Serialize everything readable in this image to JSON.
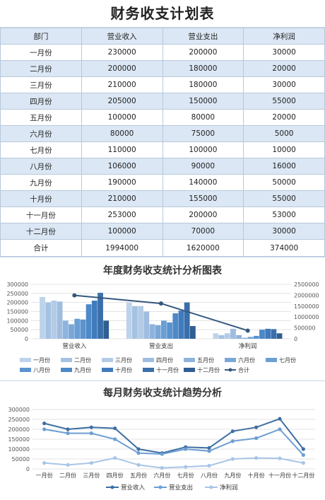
{
  "table": {
    "title": "财务收支计划表",
    "headers": [
      "部门",
      "营业收入",
      "营业支出",
      "净利润"
    ],
    "rows": [
      [
        "一月份",
        "230000",
        "200000",
        "30000"
      ],
      [
        "二月份",
        "200000",
        "180000",
        "20000"
      ],
      [
        "三月份",
        "210000",
        "180000",
        "30000"
      ],
      [
        "四月份",
        "205000",
        "150000",
        "55000"
      ],
      [
        "五月份",
        "100000",
        "80000",
        "20000"
      ],
      [
        "六月份",
        "80000",
        "75000",
        "5000"
      ],
      [
        "七月份",
        "110000",
        "100000",
        "10000"
      ],
      [
        "八月份",
        "106000",
        "90000",
        "16000"
      ],
      [
        "九月份",
        "190000",
        "140000",
        "50000"
      ],
      [
        "十月份",
        "210000",
        "155000",
        "55000"
      ],
      [
        "十一月份",
        "253000",
        "200000",
        "53000"
      ],
      [
        "十二月份",
        "100000",
        "70000",
        "30000"
      ]
    ],
    "total": [
      "合计",
      "1994000",
      "1620000",
      "374000"
    ]
  },
  "colors": {
    "months": [
      "#bdd3ea",
      "#a5c2e2",
      "#b4cbe6",
      "#9fbde0",
      "#8eb3dc",
      "#7aa7d6",
      "#6a9fd4",
      "#5b93cf",
      "#4d88c7",
      "#3f7bbd",
      "#3a6fa9",
      "#2f5e92"
    ],
    "total_line": "#35577e",
    "income": "#3e6fa3",
    "expense": "#6c9ed3",
    "profit": "#a9c5e6"
  },
  "chart_data": [
    {
      "type": "bar",
      "title": "年度财务收支统计分析图表",
      "categories": [
        "营业收入",
        "营业支出",
        "净利润"
      ],
      "series": [
        {
          "name": "一月份",
          "values": [
            230000,
            200000,
            30000
          ]
        },
        {
          "name": "二月份",
          "values": [
            200000,
            180000,
            20000
          ]
        },
        {
          "name": "三月份",
          "values": [
            210000,
            180000,
            30000
          ]
        },
        {
          "name": "四月份",
          "values": [
            205000,
            150000,
            55000
          ]
        },
        {
          "name": "五月份",
          "values": [
            100000,
            80000,
            20000
          ]
        },
        {
          "name": "六月份",
          "values": [
            80000,
            75000,
            5000
          ]
        },
        {
          "name": "七月份",
          "values": [
            110000,
            100000,
            10000
          ]
        },
        {
          "name": "八月份",
          "values": [
            106000,
            90000,
            16000
          ]
        },
        {
          "name": "九月份",
          "values": [
            190000,
            140000,
            50000
          ]
        },
        {
          "name": "十月份",
          "values": [
            210000,
            155000,
            55000
          ]
        },
        {
          "name": "十一月份",
          "values": [
            253000,
            200000,
            53000
          ]
        },
        {
          "name": "十二月份",
          "values": [
            100000,
            70000,
            30000
          ]
        }
      ],
      "line_series": {
        "name": "合计",
        "values": [
          1994000,
          1620000,
          374000
        ],
        "axis": "secondary"
      },
      "ylim": [
        0,
        300000
      ],
      "y_ticks": [
        0,
        50000,
        100000,
        150000,
        200000,
        250000,
        300000
      ],
      "y2lim": [
        0,
        2500000
      ],
      "y2_ticks": [
        0,
        500000,
        1000000,
        1500000,
        2000000,
        2500000
      ],
      "grid": true,
      "legend": "bottom"
    },
    {
      "type": "line",
      "title": "每月财务收支统计趋势分析",
      "categories": [
        "一月份",
        "二月份",
        "三月份",
        "四月份",
        "五月份",
        "六月份",
        "七月份",
        "八月份",
        "九月份",
        "十月份",
        "十一月份",
        "十二月份"
      ],
      "series": [
        {
          "name": "营业收入",
          "values": [
            230000,
            200000,
            210000,
            205000,
            100000,
            80000,
            110000,
            106000,
            190000,
            210000,
            253000,
            100000
          ]
        },
        {
          "name": "营业支出",
          "values": [
            200000,
            180000,
            180000,
            150000,
            80000,
            75000,
            100000,
            90000,
            140000,
            155000,
            200000,
            70000
          ]
        },
        {
          "name": "净利润",
          "values": [
            30000,
            20000,
            30000,
            55000,
            20000,
            5000,
            10000,
            16000,
            50000,
            55000,
            53000,
            30000
          ]
        }
      ],
      "ylim": [
        0,
        300000
      ],
      "y_ticks": [
        0,
        50000,
        100000,
        150000,
        200000,
        250000,
        300000
      ],
      "grid": true,
      "legend": "bottom"
    }
  ]
}
